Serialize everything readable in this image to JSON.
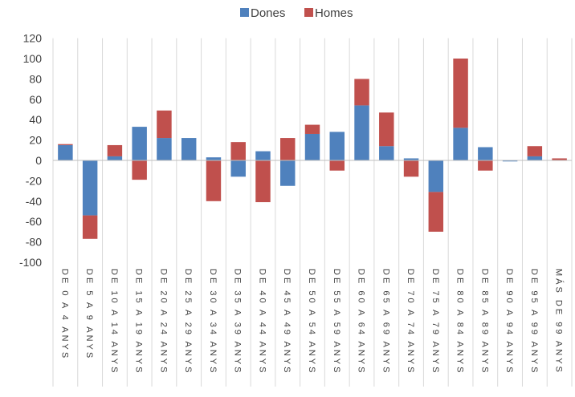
{
  "chart_data": {
    "type": "bar",
    "stacked": true,
    "categories": [
      "DE 0 A 4 ANYS",
      "DE 5 A 9 ANYS",
      "DE 10 A 14 ANYS",
      "DE 15 A 19 ANYS",
      "DE 20 A 24 ANYS",
      "DE 25 A 29 ANYS",
      "DE 30 A 34 ANYS",
      "DE 35 A 39 ANYS",
      "DE 40 A 44 ANYS",
      "DE 45 A 49 ANYS",
      "DE 50 A 54 ANYS",
      "DE 55 A 59 ANYS",
      "DE 60 A 64 ANYS",
      "DE 65 A 69 ANYS",
      "DE 70 A 74 ANYS",
      "DE 75 A 79 ANYS",
      "DE 80 A 84 ANYS",
      "DE 85 A 89 ANYS",
      "DE 90 A 94 ANYS",
      "DE 95 A 99 ANYS",
      "MÁS DE 99 ANYS"
    ],
    "series": [
      {
        "name": "Dones",
        "color": "#4f81bd",
        "values": [
          15,
          -54,
          4,
          33,
          22,
          22,
          3,
          -16,
          9,
          -25,
          26,
          28,
          54,
          14,
          2,
          -31,
          32,
          13,
          -1,
          4,
          0
        ]
      },
      {
        "name": "Homes",
        "color": "#c0504d",
        "values": [
          1,
          -23,
          11,
          -19,
          27,
          0,
          -40,
          18,
          -41,
          22,
          9,
          -10,
          26,
          33,
          -16,
          -39,
          68,
          -10,
          0,
          10,
          2
        ]
      }
    ],
    "yticks": [
      120,
      100,
      80,
      60,
      40,
      20,
      0,
      -20,
      -40,
      -60,
      -80,
      -100
    ],
    "ylim": [
      -100,
      120
    ],
    "legend_position": "top",
    "grid": false
  }
}
